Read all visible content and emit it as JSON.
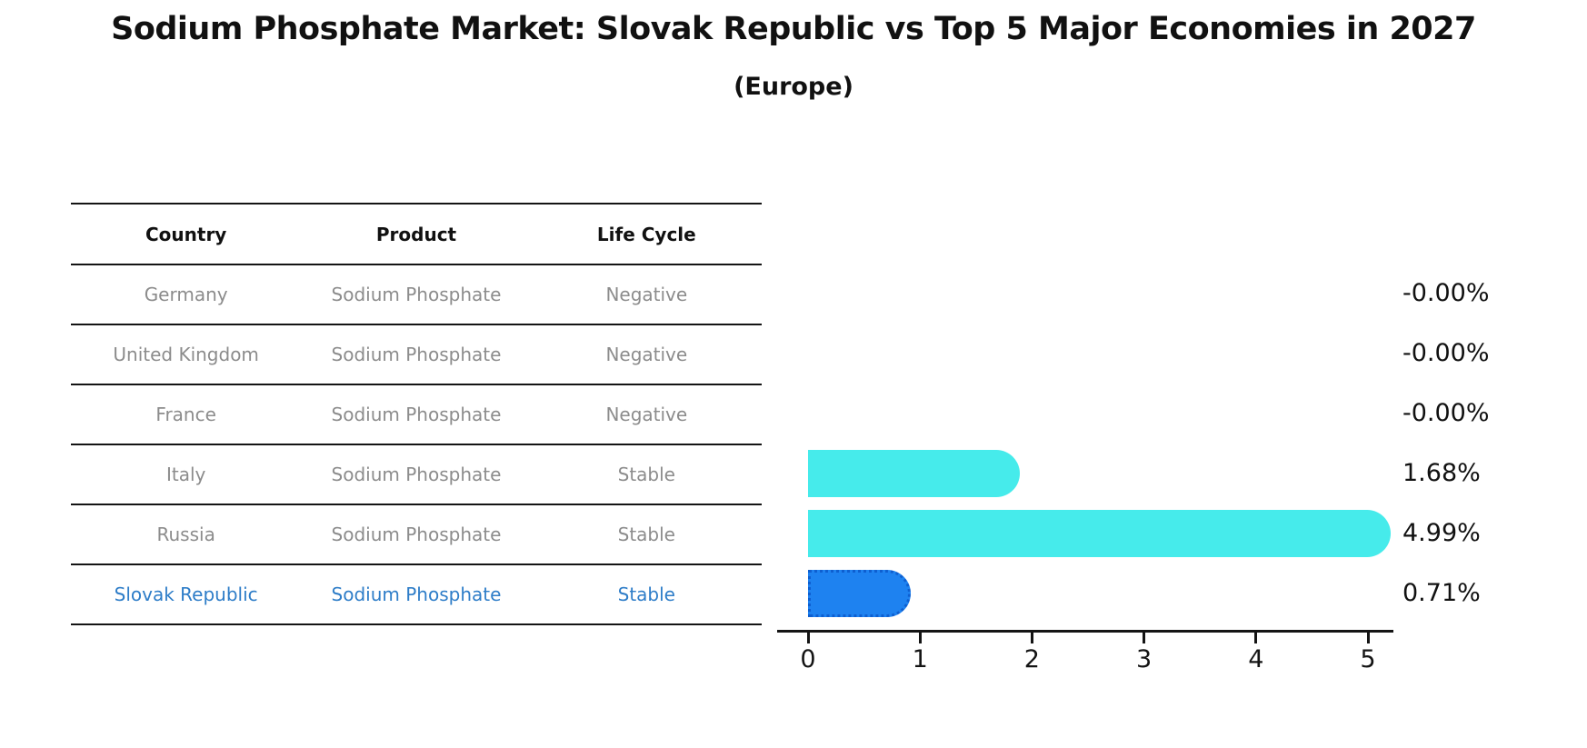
{
  "title": "Sodium Phosphate Market: Slovak Republic vs Top 5 Major Economies in 2027",
  "subtitle": "(Europe)",
  "table": {
    "headers": [
      "Country",
      "Product",
      "Life Cycle"
    ],
    "rows": [
      {
        "country": "Germany",
        "product": "Sodium Phosphate",
        "life_cycle": "Negative",
        "highlighted": false
      },
      {
        "country": "United Kingdom",
        "product": "Sodium Phosphate",
        "life_cycle": "Negative",
        "highlighted": false
      },
      {
        "country": "France",
        "product": "Sodium Phosphate",
        "life_cycle": "Negative",
        "highlighted": false
      },
      {
        "country": "Italy",
        "product": "Sodium Phosphate",
        "life_cycle": "Stable",
        "highlighted": false
      },
      {
        "country": "Russia",
        "product": "Sodium Phosphate",
        "life_cycle": "Stable",
        "highlighted": false
      },
      {
        "country": "Slovak Republic",
        "product": "Sodium Phosphate",
        "life_cycle": "Stable",
        "highlighted": true
      }
    ]
  },
  "chart_data": {
    "type": "bar",
    "orientation": "horizontal",
    "title": "Sodium Phosphate Market: Slovak Republic vs Top 5 Major Economies in 2027",
    "subtitle": "(Europe)",
    "categories": [
      "Germany",
      "United Kingdom",
      "France",
      "Italy",
      "Russia",
      "Slovak Republic"
    ],
    "values": [
      -0.0,
      -0.0,
      -0.0,
      1.68,
      4.99,
      0.71
    ],
    "value_labels": [
      "-0.00%",
      "-0.00%",
      "-0.00%",
      "1.68%",
      "4.99%",
      "0.71%"
    ],
    "x_ticks": [
      "0",
      "1",
      "2",
      "3",
      "4",
      "5"
    ],
    "xlim": [
      0,
      5
    ],
    "grid": false,
    "legend": false,
    "highlight_index": 5
  },
  "colors": {
    "bar": "#46ebeb",
    "highlight_bar": "#1e82f0",
    "highlight_bar_edge": "#0e5fd0",
    "highlight_text": "#2e7dc8",
    "muted_text": "#8c8c8c",
    "header_text": "#111111",
    "axis": "#141414"
  }
}
